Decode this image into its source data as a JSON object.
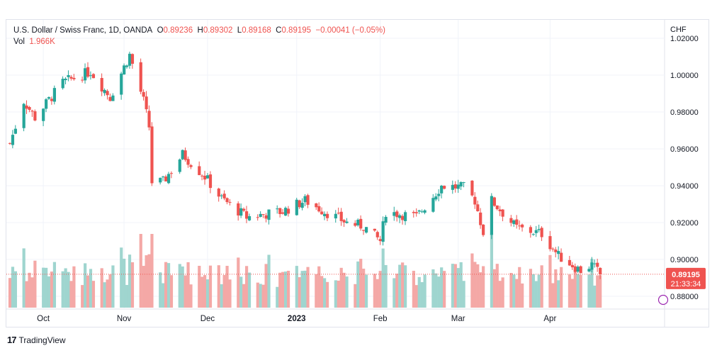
{
  "legend": {
    "symbol": "U.S. Dollar / Swiss Franc, 1D, OANDA",
    "o_label": "O",
    "o_value": "0.89236",
    "h_label": "H",
    "h_value": "0.89302",
    "l_label": "L",
    "l_value": "0.89168",
    "c_label": "C",
    "c_value": "0.89195",
    "change": "−0.00041 (−0.05%)",
    "vol_label": "Vol",
    "vol_value": "1.966K"
  },
  "footer": {
    "brand": "TradingView",
    "logo_text": "17"
  },
  "colors": {
    "up": "#26a69a",
    "down": "#ef5350",
    "up_vol": "#9fd5cf",
    "down_vol": "#f4a8a6",
    "grid": "#f0f3fa"
  },
  "chart_data": {
    "type": "candlestick",
    "currency": "CHF",
    "y_ticks": [
      "1.02000",
      "1.00000",
      "0.98000",
      "0.96000",
      "0.94000",
      "0.92000",
      "0.90000",
      "0.88000"
    ],
    "ylim": [
      0.8728,
      1.0245
    ],
    "x_ticks": [
      "Oct",
      "Nov",
      "Dec",
      "2023",
      "Feb",
      "Mar",
      "Apr"
    ],
    "x_tick_dates": [
      "2022-10-03",
      "2022-11-01",
      "2022-12-01",
      "2023-01-02",
      "2023-02-01",
      "2023-03-01",
      "2023-04-03"
    ],
    "price_label": "0.89195",
    "countdown_label": "21:33:34",
    "last_close": 0.89195,
    "ohlc_anchors": [
      [
        "2022-09-21",
        0.963
      ],
      [
        "2022-09-26",
        0.986
      ],
      [
        "2022-09-30",
        0.977
      ],
      [
        "2022-10-10",
        0.996
      ],
      [
        "2022-10-20",
        1.002
      ],
      [
        "2022-10-27",
        0.988
      ],
      [
        "2022-11-03",
        1.011
      ],
      [
        "2022-11-08",
        0.986
      ],
      [
        "2022-11-10",
        0.972
      ],
      [
        "2022-11-11",
        0.942
      ],
      [
        "2022-11-15",
        0.942
      ],
      [
        "2022-11-22",
        0.957
      ],
      [
        "2022-11-30",
        0.945
      ],
      [
        "2022-12-06",
        0.933
      ],
      [
        "2022-12-15",
        0.923
      ],
      [
        "2022-12-28",
        0.926
      ],
      [
        "2023-01-05",
        0.932
      ],
      [
        "2023-01-12",
        0.926
      ],
      [
        "2023-01-20",
        0.92
      ],
      [
        "2023-01-26",
        0.918
      ],
      [
        "2023-02-01",
        0.91
      ],
      [
        "2023-02-03",
        0.926
      ],
      [
        "2023-02-14",
        0.923
      ],
      [
        "2023-02-23",
        0.94
      ],
      [
        "2023-03-03",
        0.939
      ],
      [
        "2023-03-07",
        0.932
      ],
      [
        "2023-03-10",
        0.915
      ],
      [
        "2023-03-13",
        0.932
      ],
      [
        "2023-03-22",
        0.917
      ],
      [
        "2023-03-31",
        0.914
      ],
      [
        "2023-04-06",
        0.902
      ],
      [
        "2023-04-14",
        0.894
      ],
      [
        "2023-04-18",
        0.897
      ],
      [
        "2023-04-21",
        0.892
      ]
    ],
    "volume_scale": [
      0,
      2.0
    ],
    "volume_unit": "K"
  }
}
